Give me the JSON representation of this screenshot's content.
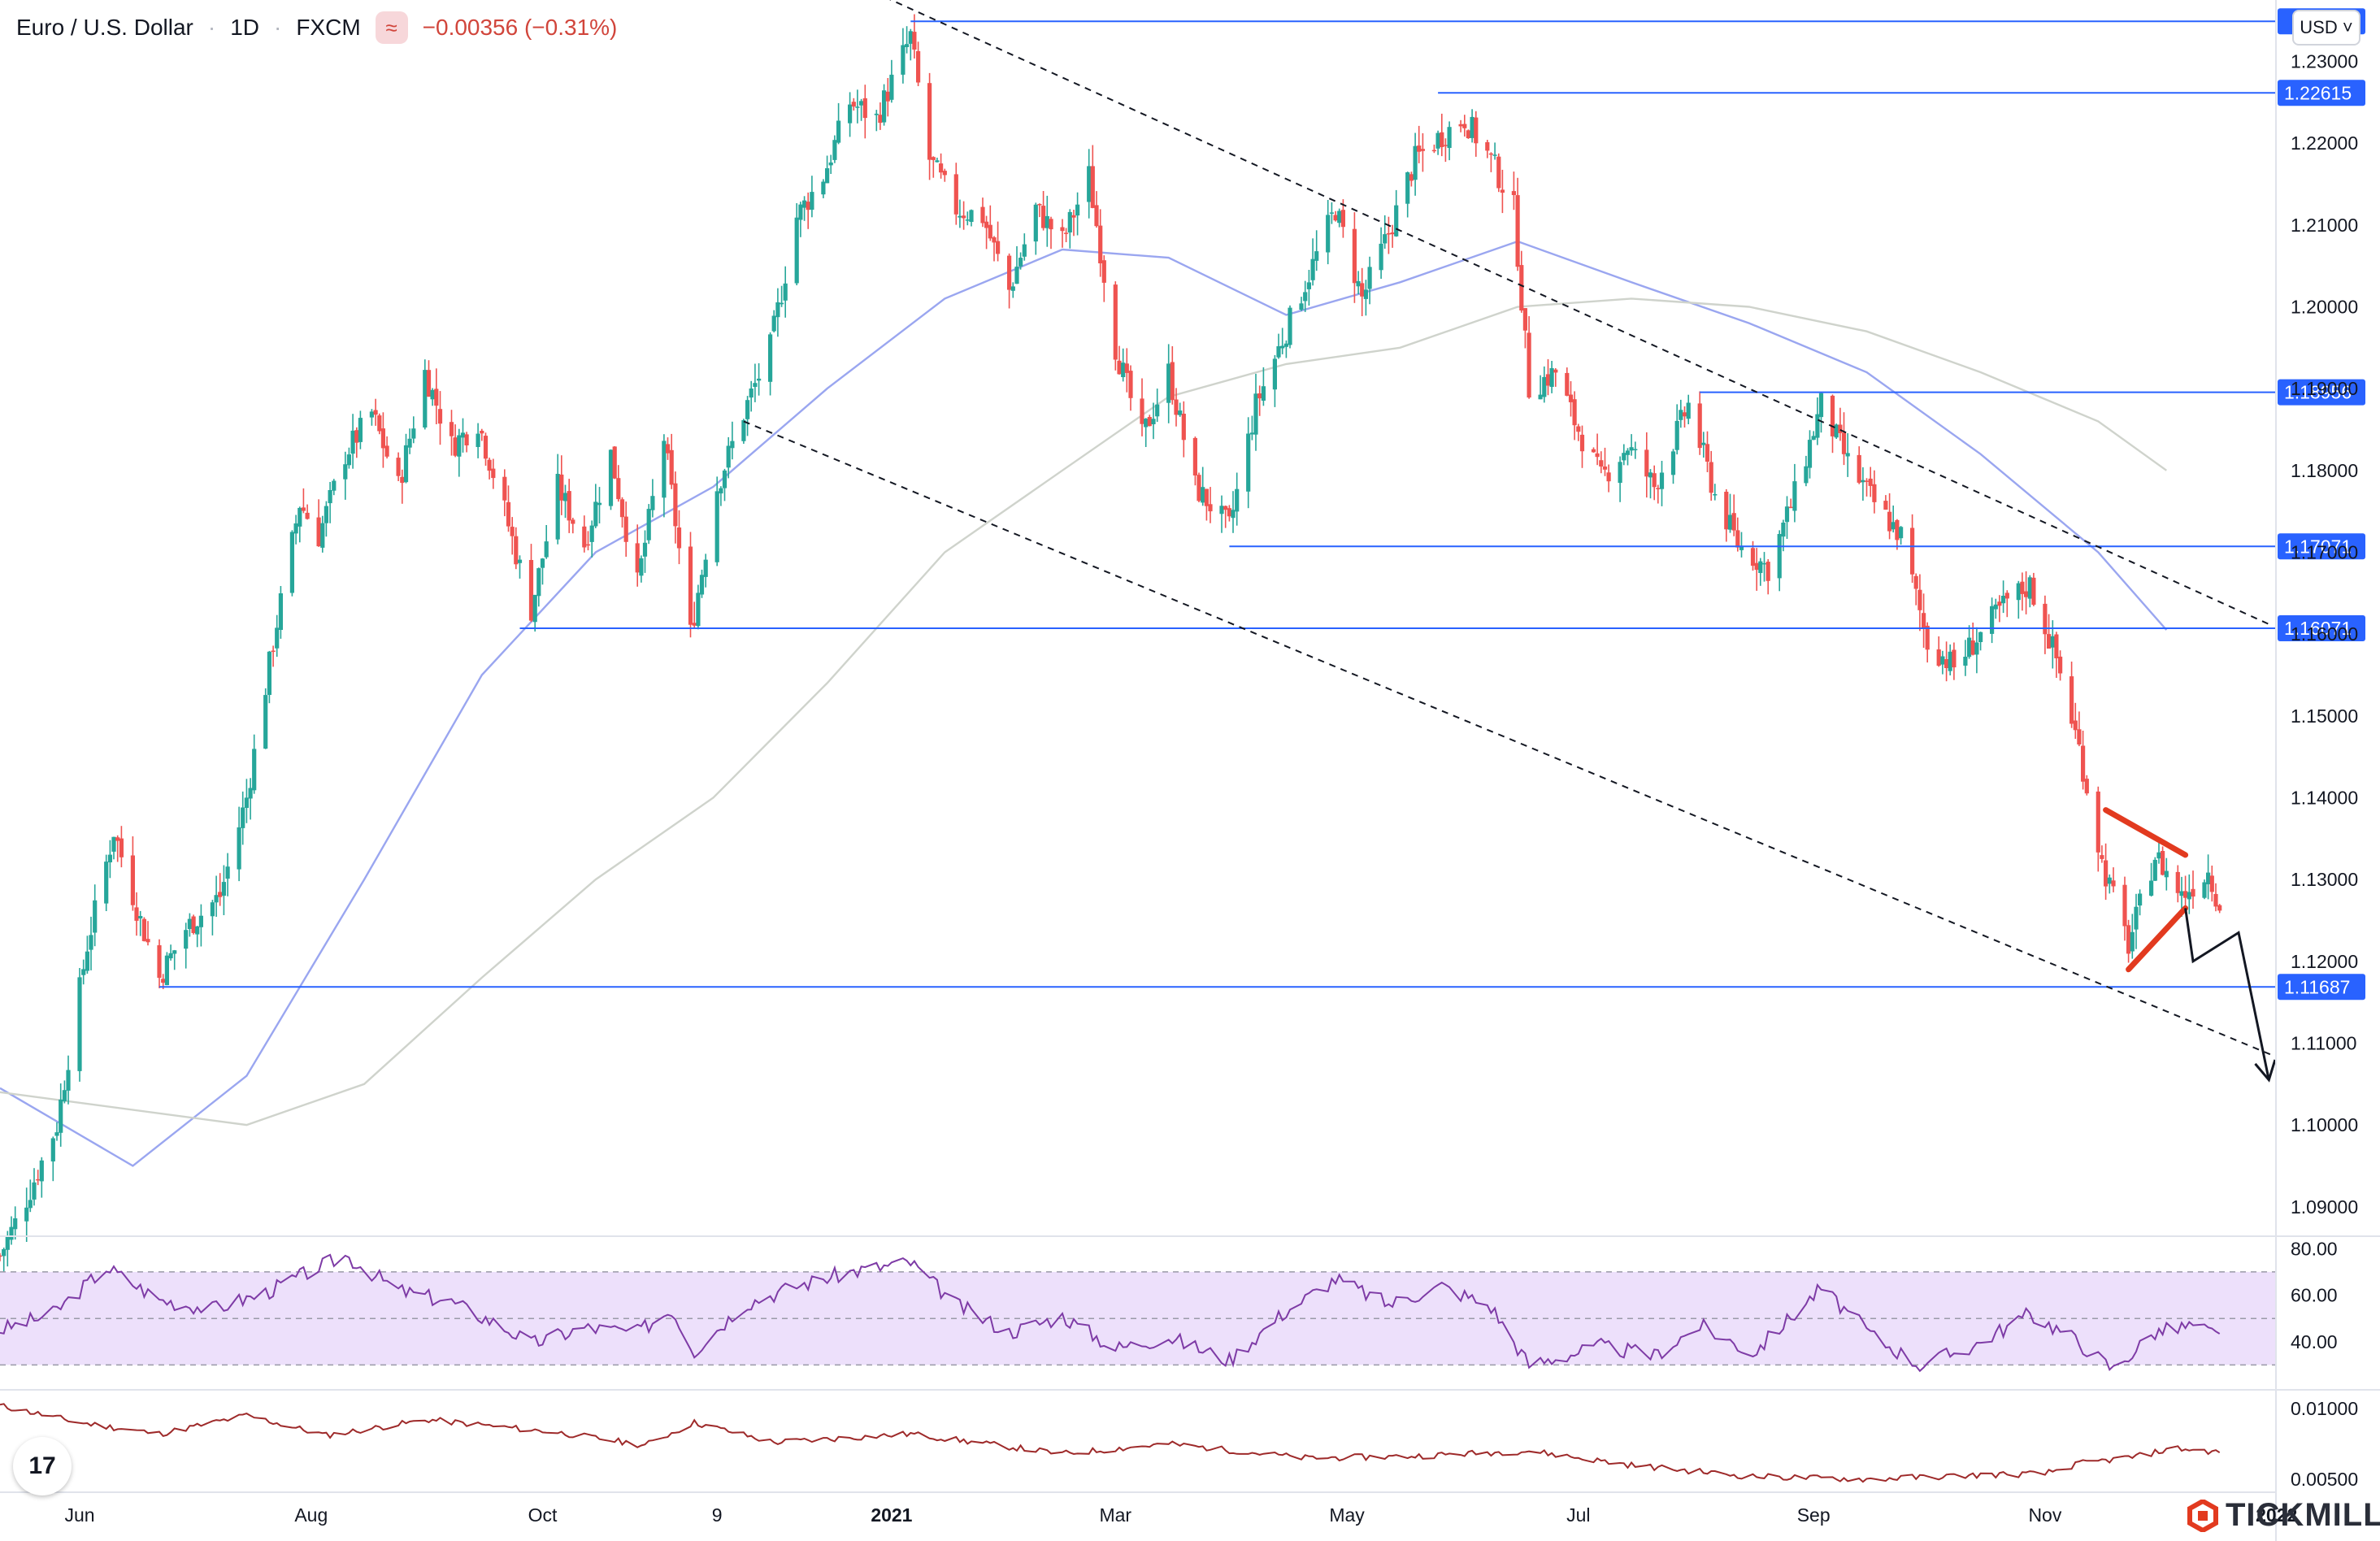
{
  "header": {
    "symbol": "Euro / U.S. Dollar",
    "interval": "1D",
    "source": "FXCM",
    "change": "−0.00356 (−0.31%)"
  },
  "currency_label": "USD ˅",
  "brand": "TICKMILL",
  "tv_logo": "17",
  "colors": {
    "up": "#26a69a",
    "down": "#ef5350",
    "hline": "#2962ff",
    "hline_label_bg": "#2962ff",
    "ma_blue": "#9aa6f0",
    "ma_grey": "#cfd3cc",
    "rsi_line": "#7e3ba6",
    "rsi_band": "#ede0fb",
    "osc_line": "#9e2a2a",
    "triangle": "#e23a1f"
  },
  "chart_data": [
    {
      "type": "candlestick",
      "name": "EURUSD",
      "x_start": "2020-05-11",
      "x_end": "2021-12-31",
      "ylim": [
        1.0865,
        1.2375
      ],
      "y_ticks": [
        "1.09000",
        "1.10000",
        "1.11000",
        "1.12000",
        "1.13000",
        "1.14000",
        "1.15000",
        "1.16000",
        "1.17000",
        "1.18000",
        "1.19000",
        "1.20000",
        "1.21000",
        "1.22000",
        "1.23000"
      ],
      "x_ticks": [
        {
          "date": "2020-06-01",
          "label": "Jun"
        },
        {
          "date": "2020-08-01",
          "label": "Aug"
        },
        {
          "date": "2020-10-01",
          "label": "Oct"
        },
        {
          "date": "2020-11-16",
          "label": "9"
        },
        {
          "date": "2021-01-01",
          "label": "2021"
        },
        {
          "date": "2021-03-01",
          "label": "Mar"
        },
        {
          "date": "2021-05-01",
          "label": "May"
        },
        {
          "date": "2021-07-01",
          "label": "Jul"
        },
        {
          "date": "2021-09-01",
          "label": "Sep"
        },
        {
          "date": "2021-11-01",
          "label": "Nov"
        },
        {
          "date": "2022-01-01",
          "label": "2022"
        }
      ],
      "close_path": [
        [
          "2020-05-11",
          1.084
        ],
        [
          "2020-05-18",
          1.091
        ],
        [
          "2020-05-26",
          1.1
        ],
        [
          "2020-06-03",
          1.122
        ],
        [
          "2020-06-10",
          1.136
        ],
        [
          "2020-06-17",
          1.125
        ],
        [
          "2020-06-22",
          1.118
        ],
        [
          "2020-06-29",
          1.124
        ],
        [
          "2020-07-08",
          1.128
        ],
        [
          "2020-07-15",
          1.14
        ],
        [
          "2020-07-22",
          1.159
        ],
        [
          "2020-07-29",
          1.176
        ],
        [
          "2020-08-03",
          1.172
        ],
        [
          "2020-08-10",
          1.182
        ],
        [
          "2020-08-17",
          1.187
        ],
        [
          "2020-08-24",
          1.178
        ],
        [
          "2020-08-31",
          1.192
        ],
        [
          "2020-09-07",
          1.183
        ],
        [
          "2020-09-14",
          1.186
        ],
        [
          "2020-09-21",
          1.175
        ],
        [
          "2020-09-28",
          1.163
        ],
        [
          "2020-10-05",
          1.178
        ],
        [
          "2020-10-12",
          1.171
        ],
        [
          "2020-10-19",
          1.182
        ],
        [
          "2020-10-26",
          1.166
        ],
        [
          "2020-11-02",
          1.184
        ],
        [
          "2020-11-09",
          1.16
        ],
        [
          "2020-11-16",
          1.178
        ],
        [
          "2020-11-23",
          1.187
        ],
        [
          "2020-11-30",
          1.195
        ],
        [
          "2020-12-07",
          1.211
        ],
        [
          "2020-12-14",
          1.216
        ],
        [
          "2020-12-21",
          1.225
        ],
        [
          "2020-12-28",
          1.223
        ],
        [
          "2021-01-06",
          1.233
        ],
        [
          "2021-01-11",
          1.218
        ],
        [
          "2021-01-18",
          1.212
        ],
        [
          "2021-01-25",
          1.211
        ],
        [
          "2021-02-01",
          1.202
        ],
        [
          "2021-02-08",
          1.212
        ],
        [
          "2021-02-15",
          1.208
        ],
        [
          "2021-02-22",
          1.216
        ],
        [
          "2021-03-01",
          1.195
        ],
        [
          "2021-03-08",
          1.184
        ],
        [
          "2021-03-15",
          1.192
        ],
        [
          "2021-03-22",
          1.178
        ],
        [
          "2021-03-31",
          1.173
        ],
        [
          "2021-04-07",
          1.188
        ],
        [
          "2021-04-14",
          1.196
        ],
        [
          "2021-04-21",
          1.204
        ],
        [
          "2021-04-28",
          1.212
        ],
        [
          "2021-05-05",
          1.201
        ],
        [
          "2021-05-12",
          1.209
        ],
        [
          "2021-05-19",
          1.218
        ],
        [
          "2021-05-26",
          1.221
        ],
        [
          "2021-06-01",
          1.223
        ],
        [
          "2021-06-08",
          1.218
        ],
        [
          "2021-06-14",
          1.212
        ],
        [
          "2021-06-18",
          1.19
        ],
        [
          "2021-06-25",
          1.192
        ],
        [
          "2021-06-30",
          1.186
        ],
        [
          "2021-07-07",
          1.179
        ],
        [
          "2021-07-14",
          1.183
        ],
        [
          "2021-07-21",
          1.178
        ],
        [
          "2021-07-30",
          1.188
        ],
        [
          "2021-08-06",
          1.177
        ],
        [
          "2021-08-12",
          1.171
        ],
        [
          "2021-08-20",
          1.168
        ],
        [
          "2021-08-27",
          1.177
        ],
        [
          "2021-09-03",
          1.188
        ],
        [
          "2021-09-10",
          1.181
        ],
        [
          "2021-09-17",
          1.176
        ],
        [
          "2021-09-24",
          1.172
        ],
        [
          "2021-10-01",
          1.159
        ],
        [
          "2021-10-08",
          1.156
        ],
        [
          "2021-10-15",
          1.16
        ],
        [
          "2021-10-22",
          1.164
        ],
        [
          "2021-10-28",
          1.166
        ],
        [
          "2021-11-04",
          1.157
        ],
        [
          "2021-11-10",
          1.146
        ],
        [
          "2021-11-16",
          1.132
        ],
        [
          "2021-11-23",
          1.122
        ],
        [
          "2021-11-30",
          1.133
        ],
        [
          "2021-12-07",
          1.128
        ],
        [
          "2021-12-14",
          1.131
        ],
        [
          "2021-12-17",
          1.127
        ]
      ],
      "h_levels": [
        {
          "value": 1.2349,
          "from": "2021-01-06",
          "label": ""
        },
        {
          "value": 1.22615,
          "from": "2021-05-25",
          "label": "1.22615"
        },
        {
          "value": 1.18956,
          "from": "2021-08-02",
          "label": "1.18956"
        },
        {
          "value": 1.17071,
          "from": "2021-03-31",
          "label": "1.17071"
        },
        {
          "value": 1.16071,
          "from": "2020-09-25",
          "label": "1.16071"
        },
        {
          "value": 1.11687,
          "from": "2020-06-22",
          "label": "1.11687"
        }
      ],
      "trendlines": [
        {
          "from": [
            "2020-12-01",
            1.244
          ],
          "to": [
            "2021-12-31",
            1.161
          ]
        },
        {
          "from": [
            "2020-11-23",
            1.186
          ],
          "to": [
            "2021-12-31",
            1.1085
          ]
        }
      ],
      "moving_averages": [
        {
          "color_key": "ma_blue",
          "points": [
            [
              "2020-05-11",
              1.1045
            ],
            [
              "2020-06-15",
              1.095
            ],
            [
              "2020-07-15",
              1.106
            ],
            [
              "2020-08-15",
              1.13
            ],
            [
              "2020-09-15",
              1.155
            ],
            [
              "2020-10-15",
              1.17
            ],
            [
              "2020-11-15",
              1.178
            ],
            [
              "2020-12-15",
              1.19
            ],
            [
              "2021-01-15",
              1.201
            ],
            [
              "2021-02-15",
              1.207
            ],
            [
              "2021-03-15",
              1.206
            ],
            [
              "2021-04-15",
              1.199
            ],
            [
              "2021-05-15",
              1.203
            ],
            [
              "2021-06-15",
              1.208
            ],
            [
              "2021-07-15",
              1.203
            ],
            [
              "2021-08-15",
              1.198
            ],
            [
              "2021-09-15",
              1.192
            ],
            [
              "2021-10-15",
              1.182
            ],
            [
              "2021-11-15",
              1.17
            ],
            [
              "2021-12-03",
              1.1605
            ]
          ]
        },
        {
          "color_key": "ma_grey",
          "points": [
            [
              "2020-05-11",
              1.104
            ],
            [
              "2020-07-15",
              1.1
            ],
            [
              "2020-08-15",
              1.105
            ],
            [
              "2020-09-15",
              1.118
            ],
            [
              "2020-10-15",
              1.13
            ],
            [
              "2020-11-15",
              1.14
            ],
            [
              "2020-12-15",
              1.154
            ],
            [
              "2021-01-15",
              1.17
            ],
            [
              "2021-02-15",
              1.18
            ],
            [
              "2021-03-15",
              1.189
            ],
            [
              "2021-04-15",
              1.193
            ],
            [
              "2021-05-15",
              1.195
            ],
            [
              "2021-06-15",
              1.2
            ],
            [
              "2021-07-15",
              1.201
            ],
            [
              "2021-08-15",
              1.2
            ],
            [
              "2021-09-15",
              1.197
            ],
            [
              "2021-10-15",
              1.192
            ],
            [
              "2021-11-15",
              1.186
            ],
            [
              "2021-12-03",
              1.18
            ]
          ]
        }
      ],
      "triangle": [
        {
          "from": [
            "2021-11-17",
            1.1385
          ],
          "to": [
            "2021-12-08",
            1.133
          ]
        },
        {
          "from": [
            "2021-11-23",
            1.119
          ],
          "to": [
            "2021-12-08",
            1.1265
          ]
        }
      ],
      "projection": [
        [
          "2021-12-08",
          1.1265
        ],
        [
          "2021-12-10",
          1.12
        ],
        [
          "2021-12-22",
          1.1235
        ],
        [
          "2021-12-30",
          1.1055
        ]
      ]
    },
    {
      "type": "line",
      "name": "RSI",
      "ylim": [
        20,
        85
      ],
      "y_ticks": [
        "40.00",
        "60.00",
        "80.00"
      ],
      "bands": [
        30,
        50,
        70
      ],
      "points": [
        [
          "2020-05-11",
          45
        ],
        [
          "2020-05-25",
          52
        ],
        [
          "2020-06-08",
          72
        ],
        [
          "2020-06-22",
          58
        ],
        [
          "2020-07-06",
          54
        ],
        [
          "2020-07-20",
          61
        ],
        [
          "2020-08-03",
          72
        ],
        [
          "2020-08-10",
          77
        ],
        [
          "2020-08-24",
          62
        ],
        [
          "2020-09-07",
          57
        ],
        [
          "2020-09-21",
          46
        ],
        [
          "2020-09-28",
          39
        ],
        [
          "2020-10-12",
          46
        ],
        [
          "2020-10-26",
          44
        ],
        [
          "2020-11-04",
          54
        ],
        [
          "2020-11-10",
          36
        ],
        [
          "2020-11-23",
          56
        ],
        [
          "2020-12-07",
          64
        ],
        [
          "2020-12-21",
          70
        ],
        [
          "2021-01-06",
          74
        ],
        [
          "2021-01-18",
          56
        ],
        [
          "2021-02-01",
          44
        ],
        [
          "2021-02-15",
          51
        ],
        [
          "2021-03-01",
          37
        ],
        [
          "2021-03-15",
          42
        ],
        [
          "2021-03-31",
          32
        ],
        [
          "2021-04-14",
          52
        ],
        [
          "2021-04-28",
          67
        ],
        [
          "2021-05-12",
          56
        ],
        [
          "2021-05-26",
          64
        ],
        [
          "2021-06-08",
          55
        ],
        [
          "2021-06-18",
          30
        ],
        [
          "2021-07-07",
          38
        ],
        [
          "2021-07-21",
          34
        ],
        [
          "2021-08-02",
          47
        ],
        [
          "2021-08-16",
          35
        ],
        [
          "2021-09-03",
          63
        ],
        [
          "2021-09-17",
          42
        ],
        [
          "2021-09-29",
          30
        ],
        [
          "2021-10-13",
          38
        ],
        [
          "2021-10-28",
          52
        ],
        [
          "2021-11-08",
          42
        ],
        [
          "2021-11-19",
          28
        ],
        [
          "2021-11-30",
          44
        ],
        [
          "2021-12-10",
          47
        ],
        [
          "2021-12-17",
          42
        ]
      ]
    },
    {
      "type": "line",
      "name": "Oscillator",
      "ylim": [
        0.0042,
        0.0112
      ],
      "y_ticks": [
        "0.00500",
        "0.01000"
      ],
      "points": [
        [
          "2020-05-11",
          0.0102
        ],
        [
          "2020-06-01",
          0.009
        ],
        [
          "2020-06-22",
          0.0082
        ],
        [
          "2020-07-15",
          0.0095
        ],
        [
          "2020-08-05",
          0.0081
        ],
        [
          "2020-09-01",
          0.0092
        ],
        [
          "2020-10-05",
          0.0083
        ],
        [
          "2020-10-28",
          0.0074
        ],
        [
          "2020-11-10",
          0.009
        ],
        [
          "2020-12-01",
          0.0076
        ],
        [
          "2021-01-06",
          0.0082
        ],
        [
          "2021-02-15",
          0.0068
        ],
        [
          "2021-03-15",
          0.0075
        ],
        [
          "2021-04-20",
          0.0065
        ],
        [
          "2021-05-15",
          0.0066
        ],
        [
          "2021-06-18",
          0.007
        ],
        [
          "2021-07-15",
          0.006
        ],
        [
          "2021-08-15",
          0.0052
        ],
        [
          "2021-09-15",
          0.005
        ],
        [
          "2021-10-15",
          0.0053
        ],
        [
          "2021-11-01",
          0.0054
        ],
        [
          "2021-11-10",
          0.0061
        ],
        [
          "2021-11-25",
          0.0066
        ],
        [
          "2021-12-05",
          0.0072
        ],
        [
          "2021-12-17",
          0.0069
        ]
      ]
    }
  ]
}
